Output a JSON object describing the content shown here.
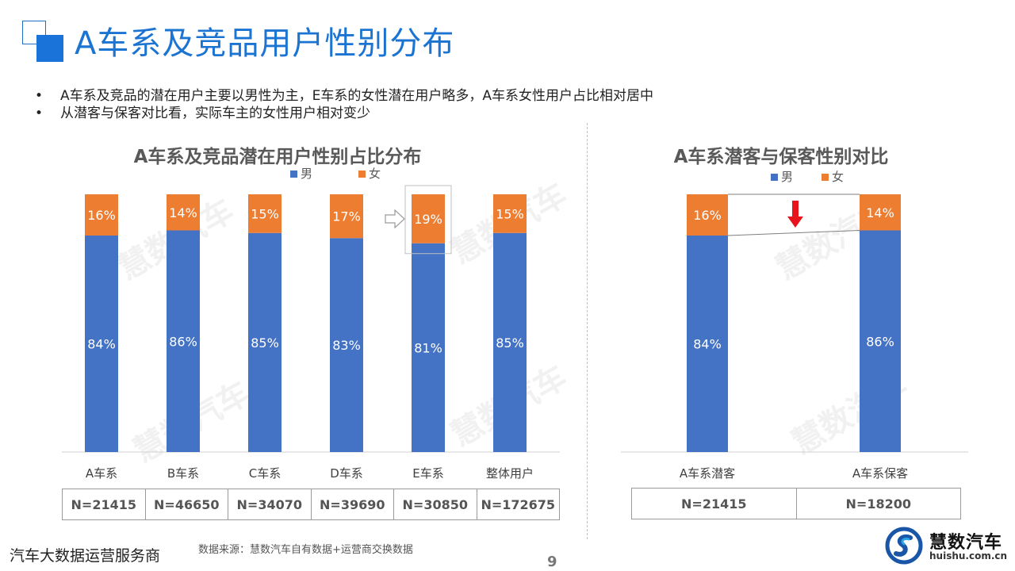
{
  "page_title": "A车系及竞品用户性别分布",
  "bullets": [
    "A车系及竞品的潜在用户主要以男性为主，E车系的女性潜在用户略多，A车系女性用户占比相对居中",
    "从潜客与保客对比看，实际车主的女性用户相对变少"
  ],
  "colors": {
    "male": "#4472c4",
    "female": "#ed7d31",
    "title_blue": "#1c74d2",
    "arrow_red": "#e8141b"
  },
  "chart_data": [
    {
      "type": "bar",
      "stacked": true,
      "percent": true,
      "title": "A车系及竞品潜在用户性别占比分布",
      "legend": [
        "男",
        "女"
      ],
      "categories": [
        "A车系",
        "B车系",
        "C车系",
        "D车系",
        "E车系",
        "整体用户"
      ],
      "series": [
        {
          "name": "男",
          "values": [
            84,
            86,
            85,
            83,
            81,
            85
          ]
        },
        {
          "name": "女",
          "values": [
            16,
            14,
            15,
            17,
            19,
            15
          ]
        }
      ],
      "sample_sizes": [
        "N=21415",
        "N=46650",
        "N=34070",
        "N=39690",
        "N=30850",
        "N=172675"
      ],
      "highlight_category": "E车系"
    },
    {
      "type": "bar",
      "stacked": true,
      "percent": true,
      "title": "A车系潜客与保客性别对比",
      "legend": [
        "男",
        "女"
      ],
      "categories": [
        "A车系潜客",
        "A车系保客"
      ],
      "series": [
        {
          "name": "男",
          "values": [
            84,
            86
          ]
        },
        {
          "name": "女",
          "values": [
            16,
            14
          ]
        }
      ],
      "sample_sizes": [
        "N=21415",
        "N=18200"
      ]
    }
  ],
  "footer": {
    "tagline": "汽车大数据运营服务商",
    "source": "数据来源：慧数汽车自有数据+运营商交换数据",
    "page_number": "9"
  },
  "brand": {
    "name": "慧数汽车",
    "url": "huishu.com.cn"
  }
}
